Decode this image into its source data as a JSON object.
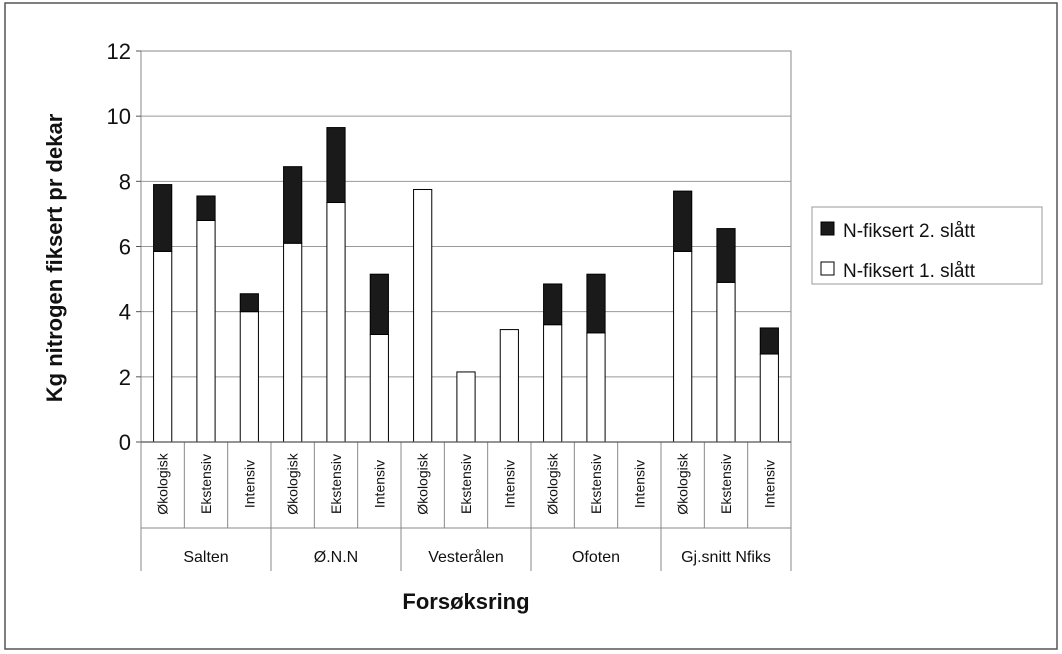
{
  "chart_data": {
    "type": "bar",
    "stacked": true,
    "ylabel": "Kg nitrogen fiksert pr dekar",
    "xlabel": "Forsøksring",
    "ylim": [
      0,
      12
    ],
    "yticks": [
      0,
      2,
      4,
      6,
      8,
      10,
      12
    ],
    "grid": true,
    "legend_position": "right",
    "groups": [
      {
        "name": "Salten",
        "categories": [
          "Økologisk",
          "Ekstensiv",
          "Intensiv"
        ]
      },
      {
        "name": "Ø.N.N",
        "categories": [
          "Økologisk",
          "Ekstensiv",
          "Intensiv"
        ]
      },
      {
        "name": "Vesterålen",
        "categories": [
          "Økologisk",
          "Ekstensiv",
          "Intensiv"
        ]
      },
      {
        "name": "Ofoten",
        "categories": [
          "Økologisk",
          "Ekstensiv",
          "Intensiv"
        ]
      },
      {
        "name": "Gj.snitt Nfiks",
        "categories": [
          "Økologisk",
          "Ekstensiv",
          "Intensiv"
        ]
      }
    ],
    "series": [
      {
        "name": "N-fiksert 1. slått",
        "color": "#ffffff",
        "values": [
          5.85,
          6.8,
          4.0,
          6.1,
          7.35,
          3.3,
          7.75,
          2.15,
          3.45,
          3.6,
          3.35,
          0,
          5.85,
          4.9,
          2.7
        ]
      },
      {
        "name": "N-fiksert 2. slått",
        "color": "#1a1a1a",
        "values": [
          2.05,
          0.75,
          0.55,
          2.35,
          2.3,
          1.85,
          0,
          0,
          0,
          1.25,
          1.8,
          0,
          1.85,
          1.65,
          0.8
        ]
      }
    ],
    "legend": [
      "N-fiksert 2. slått",
      "N-fiksert 1. slått"
    ]
  }
}
